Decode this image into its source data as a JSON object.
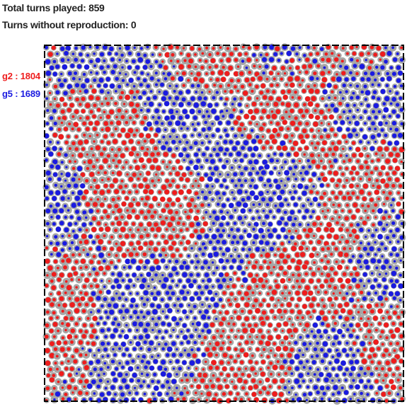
{
  "stats": {
    "total_turns_text": "Total turns played: 859",
    "turns_without_repro_text": "Turns without reproduction: 0"
  },
  "colors": {
    "g2": "#ee1c1c",
    "g5": "#1a1ae0",
    "ring": "#a6a6a6",
    "border": "#000000",
    "background": "#ffffff"
  },
  "legend": [
    {
      "name": "g2",
      "separator": ":",
      "count": "1804",
      "color": "#ee1c1c"
    },
    {
      "name": "g5",
      "separator": ":",
      "count": "1689",
      "color": "#1a1ae0"
    }
  ],
  "board": {
    "shape": "square",
    "border_style": "dashed",
    "populations": {
      "g2": 1804,
      "g5": 1689
    }
  }
}
